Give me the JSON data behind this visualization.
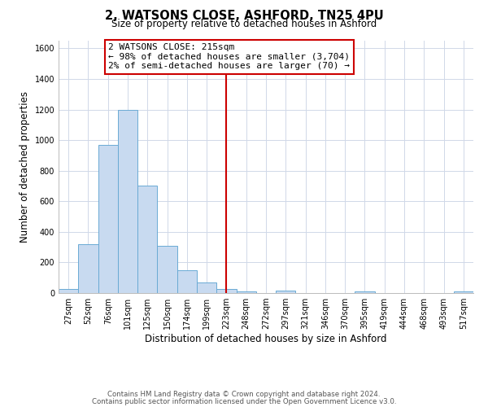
{
  "title": "2, WATSONS CLOSE, ASHFORD, TN25 4PU",
  "subtitle": "Size of property relative to detached houses in Ashford",
  "xlabel": "Distribution of detached houses by size in Ashford",
  "ylabel": "Number of detached properties",
  "footer_line1": "Contains HM Land Registry data © Crown copyright and database right 2024.",
  "footer_line2": "Contains public sector information licensed under the Open Government Licence v3.0.",
  "bin_labels": [
    "27sqm",
    "52sqm",
    "76sqm",
    "101sqm",
    "125sqm",
    "150sqm",
    "174sqm",
    "199sqm",
    "223sqm",
    "248sqm",
    "272sqm",
    "297sqm",
    "321sqm",
    "346sqm",
    "370sqm",
    "395sqm",
    "419sqm",
    "444sqm",
    "468sqm",
    "493sqm",
    "517sqm"
  ],
  "bar_heights": [
    25,
    320,
    970,
    1200,
    700,
    310,
    150,
    70,
    25,
    10,
    0,
    15,
    0,
    0,
    0,
    10,
    0,
    0,
    0,
    0,
    10
  ],
  "bar_color": "#c8daf0",
  "bar_edge_color": "#6aaad4",
  "vline_x_idx": 8.5,
  "vline_color": "#cc0000",
  "ylim": [
    0,
    1650
  ],
  "yticks": [
    0,
    200,
    400,
    600,
    800,
    1000,
    1200,
    1400,
    1600
  ],
  "annotation_title": "2 WATSONS CLOSE: 215sqm",
  "annotation_line1": "← 98% of detached houses are smaller (3,704)",
  "annotation_line2": "2% of semi-detached houses are larger (70) →",
  "bg_color": "#ffffff",
  "grid_color": "#d0d8e8"
}
